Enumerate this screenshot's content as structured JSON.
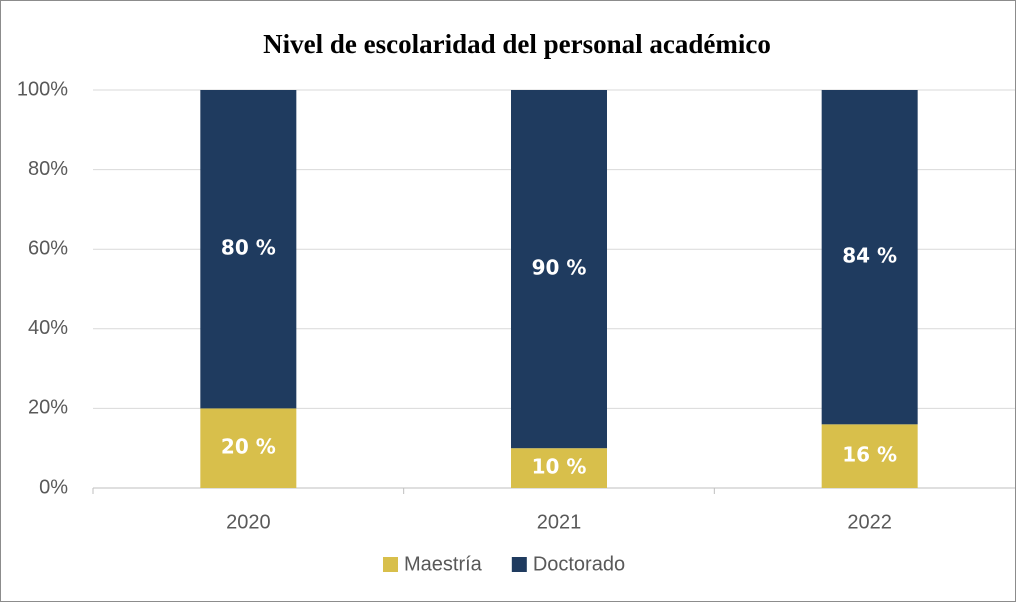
{
  "chart_data": {
    "type": "stacked_bar",
    "title": "Nivel de escolaridad del personal académico",
    "categories": [
      "2020",
      "2021",
      "2022"
    ],
    "series": [
      {
        "name": "Maestría",
        "color": "#d8bf4b",
        "values": [
          20,
          10,
          16
        ],
        "value_labels": [
          "20 %",
          "10 %",
          "16 %"
        ]
      },
      {
        "name": "Doctorado",
        "color": "#1f3b5f",
        "values": [
          80,
          90,
          84
        ],
        "value_labels": [
          "80 %",
          "90 %",
          "84 %"
        ]
      }
    ],
    "ylim": [
      0,
      100
    ],
    "yticks": [
      {
        "value": 0,
        "label": "0%"
      },
      {
        "value": 20,
        "label": "20%"
      },
      {
        "value": 40,
        "label": "40%"
      },
      {
        "value": 60,
        "label": "60%"
      },
      {
        "value": 80,
        "label": "80%"
      },
      {
        "value": 100,
        "label": "100%"
      }
    ],
    "grid": true,
    "legend": "bottom"
  }
}
